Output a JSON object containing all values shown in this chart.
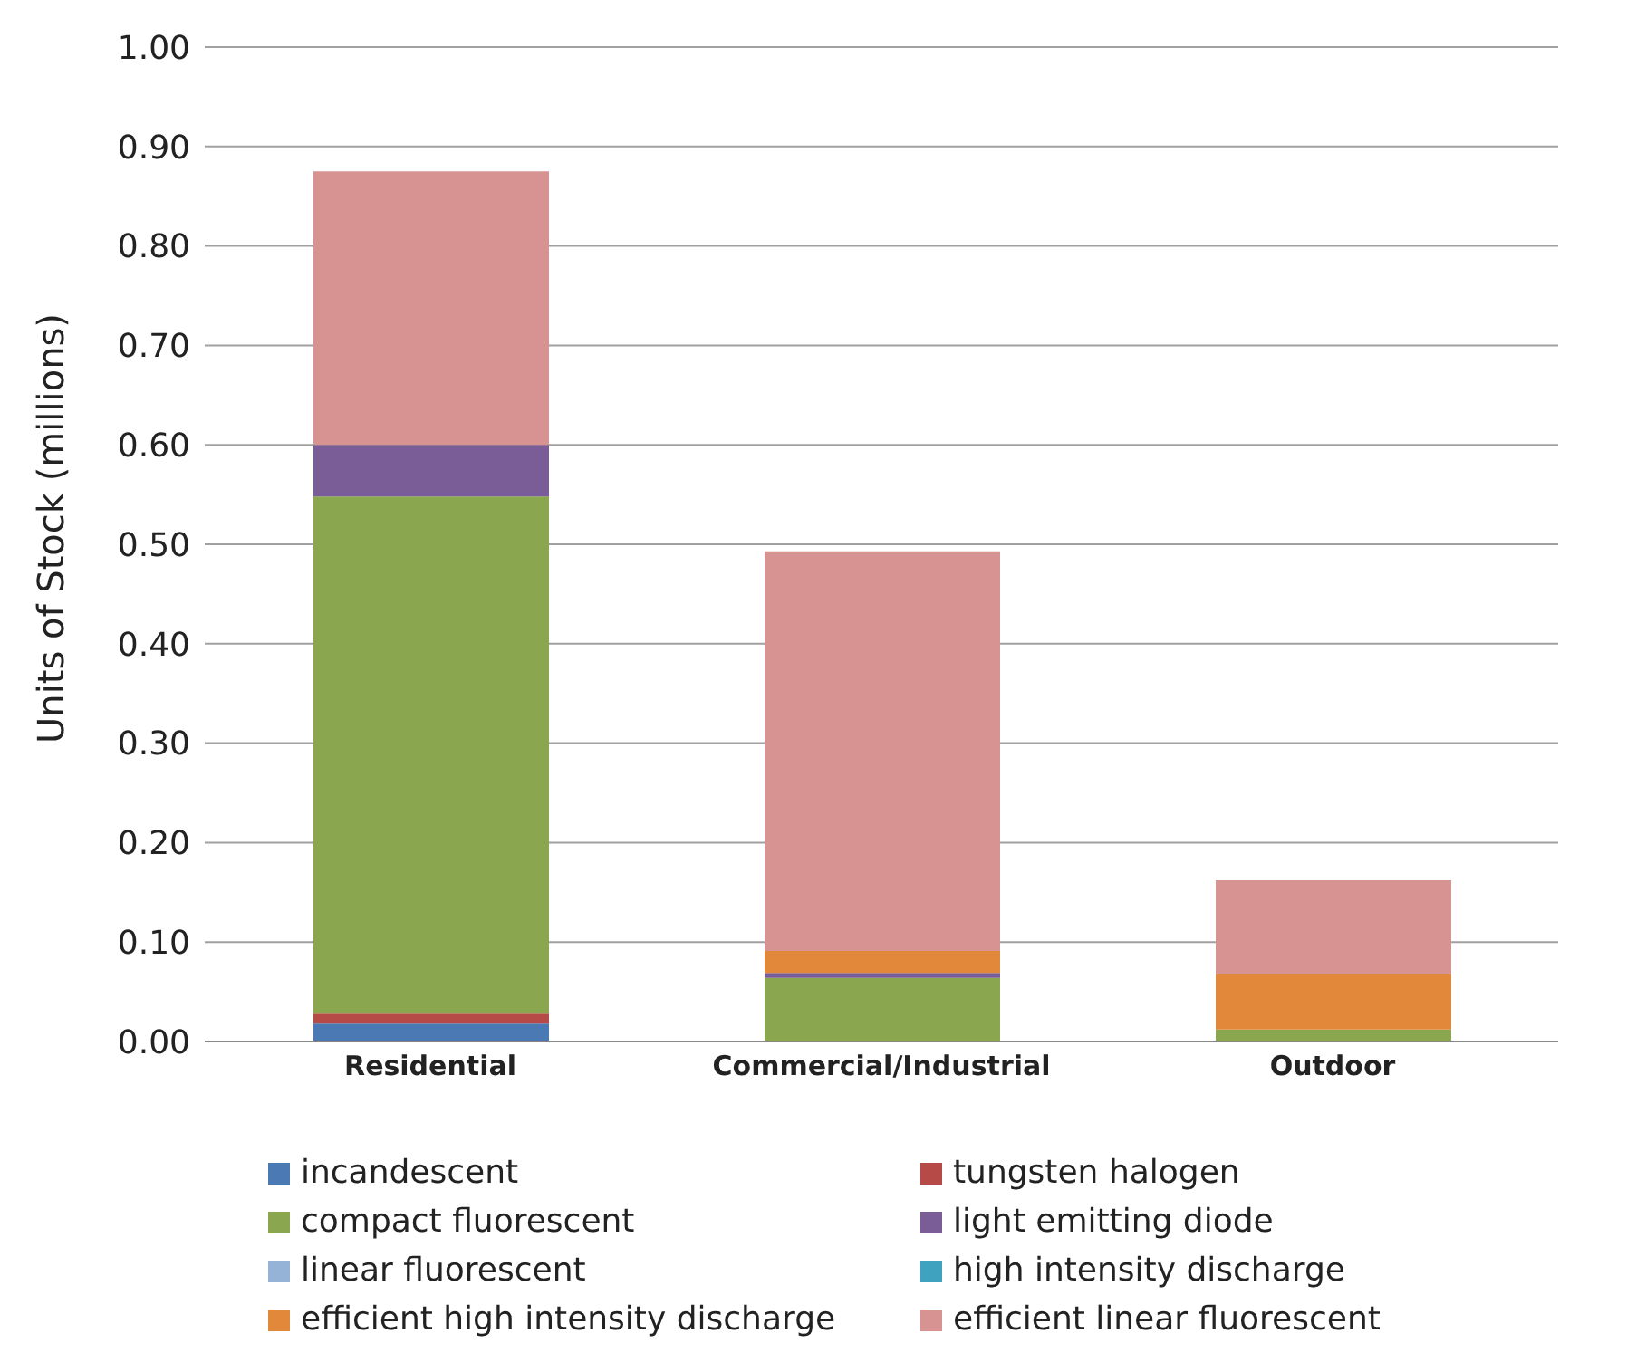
{
  "chart_data": {
    "type": "bar",
    "stacked": true,
    "ylabel": "Units of Stock (millions)",
    "categories": [
      "Residential",
      "Commercial/Industrial",
      "Outdoor"
    ],
    "ylim": [
      0,
      1
    ],
    "yticks": [
      {
        "value": 0,
        "label": "0.00"
      },
      {
        "value": 0.1,
        "label": "0.10"
      },
      {
        "value": 0.2,
        "label": "0.20"
      },
      {
        "value": 0.3,
        "label": "0.30"
      },
      {
        "value": 0.4,
        "label": "0.40"
      },
      {
        "value": 0.5,
        "label": "0.50"
      },
      {
        "value": 0.6,
        "label": "0.60"
      },
      {
        "value": 0.7,
        "label": "0.70"
      },
      {
        "value": 0.8,
        "label": "0.80"
      },
      {
        "value": 0.9,
        "label": "0.90"
      },
      {
        "value": 1,
        "label": "1.00"
      }
    ],
    "grid": "y",
    "legend": "bottom",
    "series": [
      {
        "name": "incandescent",
        "color": "#4a79b4",
        "values": [
          0.018,
          0,
          0
        ]
      },
      {
        "name": "tungsten halogen",
        "color": "#b54a47",
        "values": [
          0.01,
          0,
          0
        ]
      },
      {
        "name": "compact fluorescent",
        "color": "#8aa64e",
        "values": [
          0.52,
          0.064,
          0.012
        ]
      },
      {
        "name": "light emitting diode",
        "color": "#7a5c97",
        "values": [
          0.052,
          0.005,
          0
        ]
      },
      {
        "name": "linear fluorescent",
        "color": "#95b3d7",
        "values": [
          0,
          0,
          0
        ]
      },
      {
        "name": "high intensity discharge",
        "color": "#3fa3bf",
        "values": [
          0,
          0,
          0
        ]
      },
      {
        "name": "efficient high intensity discharge",
        "color": "#e2883a",
        "values": [
          0,
          0.022,
          0.056
        ]
      },
      {
        "name": "efficient linear fluorescent",
        "color": "#d79392",
        "values": [
          0.275,
          0.402,
          0.094
        ]
      }
    ]
  }
}
